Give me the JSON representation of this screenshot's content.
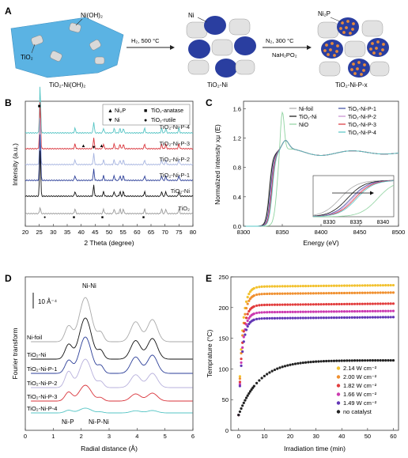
{
  "panels": {
    "a": "A",
    "b": "B",
    "c": "C",
    "d": "D",
    "e": "E"
  },
  "schematic": {
    "label_nioh2": "Ni(OH)₂",
    "label_tio2": "TiO₂",
    "label_ni": "Ni",
    "label_ni2p": "Ni₂P",
    "caption_1": "TiO₂-Ni(OH)₂",
    "caption_2": "TiO₂-Ni",
    "caption_3": "TiO₂-Ni-P-x",
    "arrow1_top": "H₂, 500 °C",
    "arrow2_top": "N₂, 300 °C",
    "arrow2_bottom": "NaH₂PO₂",
    "colors": {
      "substrate": "#5bb3e3",
      "tio2": "#d9d9d9",
      "ni": "#2a3ea0",
      "ni2p": "#e7893a"
    }
  },
  "chart_data": [
    {
      "panel": "B",
      "type": "line",
      "xlabel": "2 Theta (degree)",
      "ylabel": "Intensity (a.u.)",
      "xlim": [
        20,
        80
      ],
      "xticks": [
        20,
        25,
        30,
        35,
        40,
        45,
        50,
        55,
        60,
        65,
        70,
        75,
        80
      ],
      "legend": [
        {
          "symbol": "▲",
          "label": "Ni₂P"
        },
        {
          "symbol": "■",
          "label": "TiO₂-anatase"
        },
        {
          "symbol": "▼",
          "label": "Ni"
        },
        {
          "symbol": "●",
          "label": "TiO₂-rutile"
        }
      ],
      "series": [
        {
          "name": "TiO₂-Ni-P-4",
          "color": "#55c4c4"
        },
        {
          "name": "TiO₂-Ni-P-3",
          "color": "#d9333a"
        },
        {
          "name": "TiO₂-Ni-P-2",
          "color": "#a6b4e0"
        },
        {
          "name": "TiO₂-Ni-P-1",
          "color": "#2b3e98"
        },
        {
          "name": "TiO₂-Ni",
          "color": "#111111"
        },
        {
          "name": "TiO₂",
          "color": "#999999"
        }
      ],
      "peaks": [
        25.3,
        37.8,
        44.5,
        48.0,
        51.8,
        53.9,
        55.1,
        62.7,
        68.8,
        70.3,
        75.0
      ]
    },
    {
      "panel": "C",
      "type": "line",
      "xlabel": "Energy (eV)",
      "ylabel": "Normalized intensity xμ (E)",
      "xlim": [
        8300,
        8500
      ],
      "ylim": [
        0,
        1.7
      ],
      "xticks": [
        8300,
        8350,
        8400,
        8450,
        8500
      ],
      "yticks": [
        0.0,
        0.4,
        0.8,
        1.2,
        1.6
      ],
      "series": [
        {
          "name": "Ni-foil",
          "color": "#aaaaaa"
        },
        {
          "name": "TiO₂-Ni",
          "color": "#111111"
        },
        {
          "name": "NiO",
          "color": "#8fd3a0"
        },
        {
          "name": "TiO₂-Ni-P-1",
          "color": "#3b4aa0"
        },
        {
          "name": "TiO₂-Ni-P-2",
          "color": "#c98bd0"
        },
        {
          "name": "TiO₂-Ni-P-3",
          "color": "#d9333a"
        },
        {
          "name": "TiO₂-Ni-P-4",
          "color": "#55c4c4"
        }
      ],
      "inset": {
        "xlim": [
          8327,
          8342
        ],
        "xticks": [
          8330,
          8335,
          8340
        ]
      }
    },
    {
      "panel": "D",
      "type": "line",
      "xlabel": "Radial distance (Å)",
      "ylabel": "Fourier transform",
      "xlim": [
        0,
        6
      ],
      "xticks": [
        0,
        1,
        2,
        3,
        4,
        5,
        6
      ],
      "scalebar": "10 Å⁻⁴",
      "annotations": [
        "Ni-Ni",
        "Ni-P",
        "Ni-P-Ni"
      ],
      "series": [
        {
          "name": "Ni-foil",
          "color": "#aaaaaa"
        },
        {
          "name": "TiO₂-Ni",
          "color": "#111111"
        },
        {
          "name": "TiO₂-Ni-P-1",
          "color": "#2b3e98"
        },
        {
          "name": "TiO₂-Ni-P-2",
          "color": "#b7b0dc"
        },
        {
          "name": "TiO₂-Ni-P-3",
          "color": "#d9333a"
        },
        {
          "name": "TiO₂-Ni-P-4",
          "color": "#55c4c4"
        }
      ]
    },
    {
      "panel": "E",
      "type": "scatter",
      "xlabel": "Irradiation time (min)",
      "ylabel": "Temprature (°C)",
      "xlim": [
        -3,
        62
      ],
      "ylim": [
        0,
        250
      ],
      "xticks": [
        0,
        10,
        20,
        30,
        40,
        50,
        60
      ],
      "yticks": [
        0,
        50,
        100,
        150,
        200,
        250
      ],
      "series": [
        {
          "name": "2.14 W cm⁻²",
          "color": "#f2c12e",
          "plateau": 234
        },
        {
          "name": "2.00 W cm⁻²",
          "color": "#f0902f",
          "plateau": 222
        },
        {
          "name": "1.82 W cm⁻²",
          "color": "#e23d3d",
          "plateau": 204
        },
        {
          "name": "1.66 W cm⁻²",
          "color": "#cc3ab0",
          "plateau": 192
        },
        {
          "name": "1.49 W cm⁻²",
          "color": "#6236b5",
          "plateau": 182
        },
        {
          "name": "no catalyst",
          "color": "#222222",
          "plateau": 114
        }
      ]
    }
  ]
}
